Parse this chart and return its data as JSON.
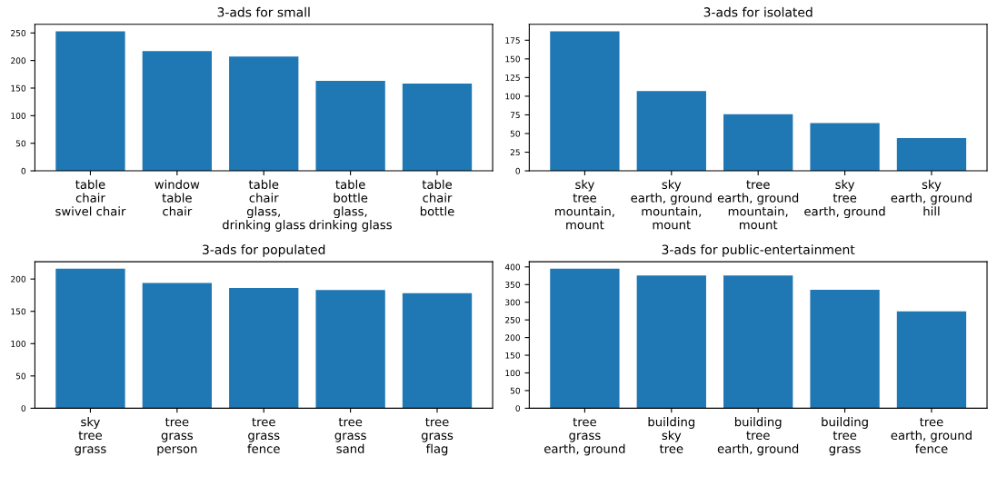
{
  "chart_data": [
    {
      "type": "bar",
      "title": "3-ads for small",
      "categories": [
        "table\nchair\nswivel chair",
        "window\ntable\nchair",
        "table\nchair\nglass, drinking glass",
        "table\nbottle\nglass, drinking glass",
        "table\nchair\nbottle"
      ],
      "values": [
        253,
        217,
        207,
        163,
        158
      ],
      "color": "#1f77b4",
      "ylim": [
        0,
        265.65
      ],
      "yticks": [
        0,
        50,
        100,
        150,
        200,
        250
      ],
      "grid": false
    },
    {
      "type": "bar",
      "title": "3-ads for isolated",
      "categories": [
        "sky\ntree\nmountain, mount",
        "sky\nearth, ground\nmountain, mount",
        "tree\nearth, ground\nmountain, mount",
        "sky\ntree\nearth, ground",
        "sky\nearth, ground\nhill"
      ],
      "values": [
        187,
        107,
        76,
        64,
        44
      ],
      "color": "#1f77b4",
      "ylim": [
        0,
        196.35
      ],
      "yticks": [
        0,
        25,
        50,
        75,
        100,
        125,
        150,
        175
      ],
      "grid": false
    },
    {
      "type": "bar",
      "title": "3-ads for populated",
      "categories": [
        "sky\ntree\ngrass",
        "tree\ngrass\nperson",
        "tree\ngrass\nfence",
        "tree\ngrass\nsand",
        "tree\ngrass\nflag"
      ],
      "values": [
        216,
        194,
        186,
        183,
        178
      ],
      "color": "#1f77b4",
      "ylim": [
        0,
        226.8
      ],
      "yticks": [
        0,
        50,
        100,
        150,
        200
      ],
      "grid": false
    },
    {
      "type": "bar",
      "title": "3-ads for public-entertainment",
      "categories": [
        "tree\ngrass\nearth, ground",
        "building\nsky\ntree",
        "building\ntree\nearth, ground",
        "building\ntree\ngrass",
        "tree\nearth, ground\nfence"
      ],
      "values": [
        395,
        376,
        376,
        335,
        274
      ],
      "color": "#1f77b4",
      "ylim": [
        0,
        414.75
      ],
      "yticks": [
        0,
        50,
        100,
        150,
        200,
        250,
        300,
        350,
        400
      ],
      "grid": false
    }
  ]
}
